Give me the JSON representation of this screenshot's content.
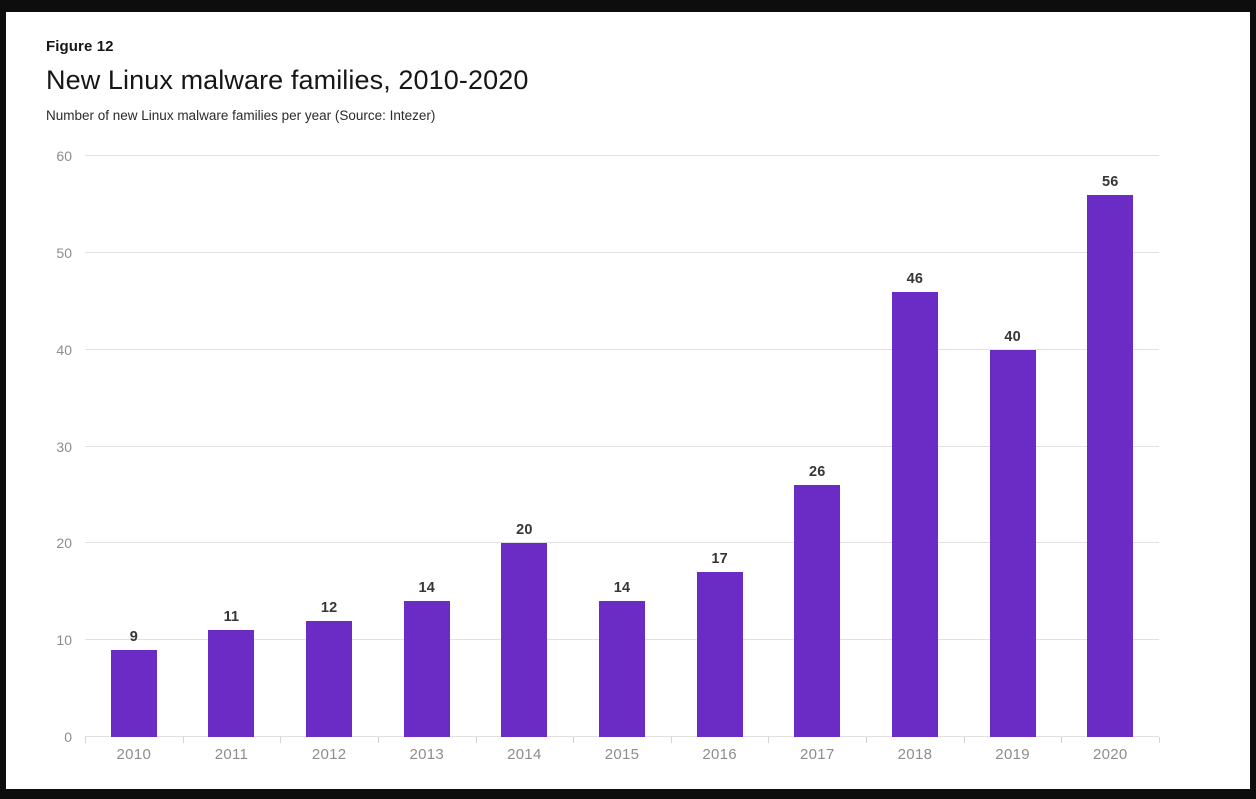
{
  "figure": {
    "label": "Figure 12",
    "title": "New Linux malware families, 2010-2020",
    "subtitle": "Number of new Linux malware families per year (Source: Intezer)"
  },
  "chart_data": {
    "type": "bar",
    "categories": [
      "2010",
      "2011",
      "2012",
      "2013",
      "2014",
      "2015",
      "2016",
      "2017",
      "2018",
      "2019",
      "2020"
    ],
    "values": [
      9,
      11,
      12,
      14,
      20,
      14,
      17,
      26,
      46,
      40,
      56
    ],
    "title": "New Linux malware families, 2010-2020",
    "xlabel": "",
    "ylabel": "",
    "ylim": [
      0,
      60
    ],
    "yticks": [
      0,
      10,
      20,
      30,
      40,
      50,
      60
    ],
    "grid": true,
    "legend": "none",
    "value_labels_shown": true,
    "colors": {
      "bar": "#6a2cc4",
      "gridline": "#e1e1e1",
      "axis_tick_label": "#8d8d8d",
      "value_label": "#363636",
      "title_text": "#161616",
      "frame": "#0d0d0d",
      "background": "#ffffff"
    }
  }
}
